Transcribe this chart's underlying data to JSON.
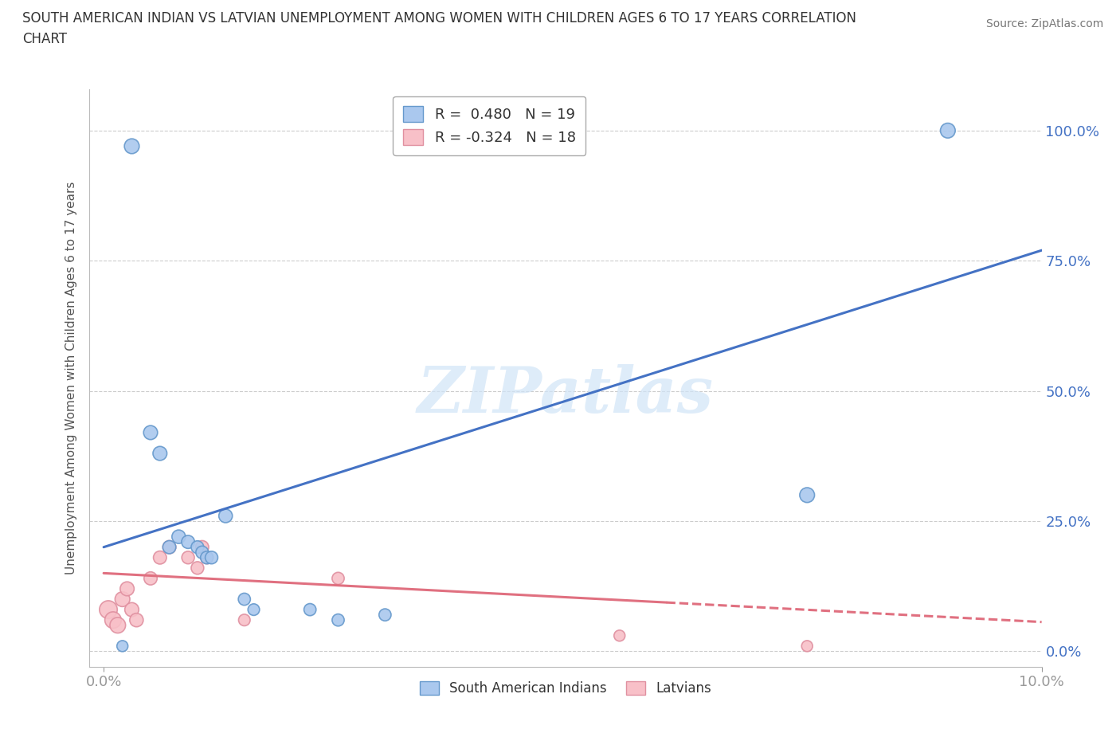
{
  "title": "SOUTH AMERICAN INDIAN VS LATVIAN UNEMPLOYMENT AMONG WOMEN WITH CHILDREN AGES 6 TO 17 YEARS CORRELATION\nCHART",
  "source_text": "Source: ZipAtlas.com",
  "ylabel": "Unemployment Among Women with Children Ages 6 to 17 years",
  "xlim": [
    -0.15,
    10.0
  ],
  "ylim": [
    -3.0,
    108.0
  ],
  "blue_R": 0.48,
  "blue_N": 19,
  "pink_R": -0.324,
  "pink_N": 18,
  "blue_color": "#aac8ee",
  "blue_edge_color": "#6699cc",
  "blue_line_color": "#4472c4",
  "pink_color": "#f8c0c8",
  "pink_edge_color": "#e090a0",
  "pink_line_color": "#e07080",
  "legend_blue_label": "R =  0.480   N = 19",
  "legend_pink_label": "R = -0.324   N = 18",
  "blue_line_x0": 0.0,
  "blue_line_y0": 20.0,
  "blue_line_x1": 10.0,
  "blue_line_y1": 77.0,
  "pink_line_x0": 0.0,
  "pink_line_y0": 15.0,
  "pink_line_x1": 8.0,
  "pink_line_y1": 7.5,
  "pink_solid_xmax": 6.0,
  "pink_dash_xmax": 10.0,
  "blue_scatter_x": [
    0.3,
    0.5,
    0.6,
    0.7,
    0.8,
    0.9,
    1.0,
    1.05,
    1.1,
    1.15,
    1.5,
    1.6,
    2.2,
    2.5,
    3.0,
    7.5,
    9.0,
    1.3,
    0.2
  ],
  "blue_scatter_y": [
    97.0,
    42.0,
    38.0,
    20.0,
    22.0,
    21.0,
    20.0,
    19.0,
    18.0,
    18.0,
    10.0,
    8.0,
    8.0,
    6.0,
    7.0,
    30.0,
    100.0,
    26.0,
    1.0
  ],
  "blue_scatter_size": [
    180,
    160,
    160,
    140,
    150,
    140,
    130,
    130,
    130,
    130,
    120,
    110,
    120,
    120,
    120,
    180,
    180,
    150,
    100
  ],
  "pink_scatter_x": [
    0.05,
    0.1,
    0.15,
    0.2,
    0.25,
    0.3,
    0.35,
    0.5,
    0.6,
    0.7,
    0.9,
    1.0,
    1.05,
    1.1,
    1.5,
    2.5,
    5.5,
    7.5
  ],
  "pink_scatter_y": [
    8.0,
    6.0,
    5.0,
    10.0,
    12.0,
    8.0,
    6.0,
    14.0,
    18.0,
    20.0,
    18.0,
    16.0,
    20.0,
    18.0,
    6.0,
    14.0,
    3.0,
    1.0
  ],
  "pink_scatter_size": [
    260,
    220,
    200,
    180,
    160,
    160,
    150,
    140,
    140,
    140,
    130,
    130,
    140,
    130,
    110,
    120,
    100,
    100
  ],
  "y_ticks": [
    0,
    25,
    50,
    75,
    100
  ],
  "x_ticks": [
    0.0,
    10.0
  ],
  "watermark": "ZIPatlas",
  "background_color": "#ffffff",
  "grid_color": "#cccccc",
  "tick_label_color": "#4472c4"
}
